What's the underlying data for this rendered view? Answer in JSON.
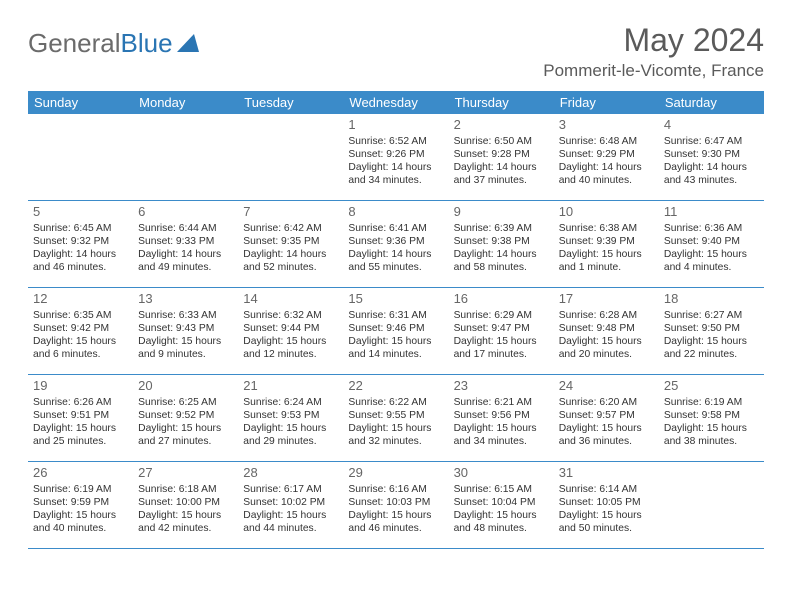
{
  "logo": {
    "text1": "General",
    "text2": "Blue"
  },
  "title": "May 2024",
  "location": "Pommerit-le-Vicomte, France",
  "colors": {
    "header_bg": "#3b8bc9",
    "header_fg": "#ffffff",
    "border": "#3b8bc9",
    "text": "#333333",
    "muted": "#666666",
    "logo_gray": "#6b6b6b",
    "logo_blue": "#2a75b3"
  },
  "dayNames": [
    "Sunday",
    "Monday",
    "Tuesday",
    "Wednesday",
    "Thursday",
    "Friday",
    "Saturday"
  ],
  "weeks": [
    [
      {
        "n": "",
        "empty": true
      },
      {
        "n": "",
        "empty": true
      },
      {
        "n": "",
        "empty": true
      },
      {
        "n": "1",
        "sunrise": "6:52 AM",
        "sunset": "9:26 PM",
        "daylight": "14 hours and 34 minutes."
      },
      {
        "n": "2",
        "sunrise": "6:50 AM",
        "sunset": "9:28 PM",
        "daylight": "14 hours and 37 minutes."
      },
      {
        "n": "3",
        "sunrise": "6:48 AM",
        "sunset": "9:29 PM",
        "daylight": "14 hours and 40 minutes."
      },
      {
        "n": "4",
        "sunrise": "6:47 AM",
        "sunset": "9:30 PM",
        "daylight": "14 hours and 43 minutes."
      }
    ],
    [
      {
        "n": "5",
        "sunrise": "6:45 AM",
        "sunset": "9:32 PM",
        "daylight": "14 hours and 46 minutes."
      },
      {
        "n": "6",
        "sunrise": "6:44 AM",
        "sunset": "9:33 PM",
        "daylight": "14 hours and 49 minutes."
      },
      {
        "n": "7",
        "sunrise": "6:42 AM",
        "sunset": "9:35 PM",
        "daylight": "14 hours and 52 minutes."
      },
      {
        "n": "8",
        "sunrise": "6:41 AM",
        "sunset": "9:36 PM",
        "daylight": "14 hours and 55 minutes."
      },
      {
        "n": "9",
        "sunrise": "6:39 AM",
        "sunset": "9:38 PM",
        "daylight": "14 hours and 58 minutes."
      },
      {
        "n": "10",
        "sunrise": "6:38 AM",
        "sunset": "9:39 PM",
        "daylight": "15 hours and 1 minute."
      },
      {
        "n": "11",
        "sunrise": "6:36 AM",
        "sunset": "9:40 PM",
        "daylight": "15 hours and 4 minutes."
      }
    ],
    [
      {
        "n": "12",
        "sunrise": "6:35 AM",
        "sunset": "9:42 PM",
        "daylight": "15 hours and 6 minutes."
      },
      {
        "n": "13",
        "sunrise": "6:33 AM",
        "sunset": "9:43 PM",
        "daylight": "15 hours and 9 minutes."
      },
      {
        "n": "14",
        "sunrise": "6:32 AM",
        "sunset": "9:44 PM",
        "daylight": "15 hours and 12 minutes."
      },
      {
        "n": "15",
        "sunrise": "6:31 AM",
        "sunset": "9:46 PM",
        "daylight": "15 hours and 14 minutes."
      },
      {
        "n": "16",
        "sunrise": "6:29 AM",
        "sunset": "9:47 PM",
        "daylight": "15 hours and 17 minutes."
      },
      {
        "n": "17",
        "sunrise": "6:28 AM",
        "sunset": "9:48 PM",
        "daylight": "15 hours and 20 minutes."
      },
      {
        "n": "18",
        "sunrise": "6:27 AM",
        "sunset": "9:50 PM",
        "daylight": "15 hours and 22 minutes."
      }
    ],
    [
      {
        "n": "19",
        "sunrise": "6:26 AM",
        "sunset": "9:51 PM",
        "daylight": "15 hours and 25 minutes."
      },
      {
        "n": "20",
        "sunrise": "6:25 AM",
        "sunset": "9:52 PM",
        "daylight": "15 hours and 27 minutes."
      },
      {
        "n": "21",
        "sunrise": "6:24 AM",
        "sunset": "9:53 PM",
        "daylight": "15 hours and 29 minutes."
      },
      {
        "n": "22",
        "sunrise": "6:22 AM",
        "sunset": "9:55 PM",
        "daylight": "15 hours and 32 minutes."
      },
      {
        "n": "23",
        "sunrise": "6:21 AM",
        "sunset": "9:56 PM",
        "daylight": "15 hours and 34 minutes."
      },
      {
        "n": "24",
        "sunrise": "6:20 AM",
        "sunset": "9:57 PM",
        "daylight": "15 hours and 36 minutes."
      },
      {
        "n": "25",
        "sunrise": "6:19 AM",
        "sunset": "9:58 PM",
        "daylight": "15 hours and 38 minutes."
      }
    ],
    [
      {
        "n": "26",
        "sunrise": "6:19 AM",
        "sunset": "9:59 PM",
        "daylight": "15 hours and 40 minutes."
      },
      {
        "n": "27",
        "sunrise": "6:18 AM",
        "sunset": "10:00 PM",
        "daylight": "15 hours and 42 minutes."
      },
      {
        "n": "28",
        "sunrise": "6:17 AM",
        "sunset": "10:02 PM",
        "daylight": "15 hours and 44 minutes."
      },
      {
        "n": "29",
        "sunrise": "6:16 AM",
        "sunset": "10:03 PM",
        "daylight": "15 hours and 46 minutes."
      },
      {
        "n": "30",
        "sunrise": "6:15 AM",
        "sunset": "10:04 PM",
        "daylight": "15 hours and 48 minutes."
      },
      {
        "n": "31",
        "sunrise": "6:14 AM",
        "sunset": "10:05 PM",
        "daylight": "15 hours and 50 minutes."
      },
      {
        "n": "",
        "empty": true
      }
    ]
  ]
}
